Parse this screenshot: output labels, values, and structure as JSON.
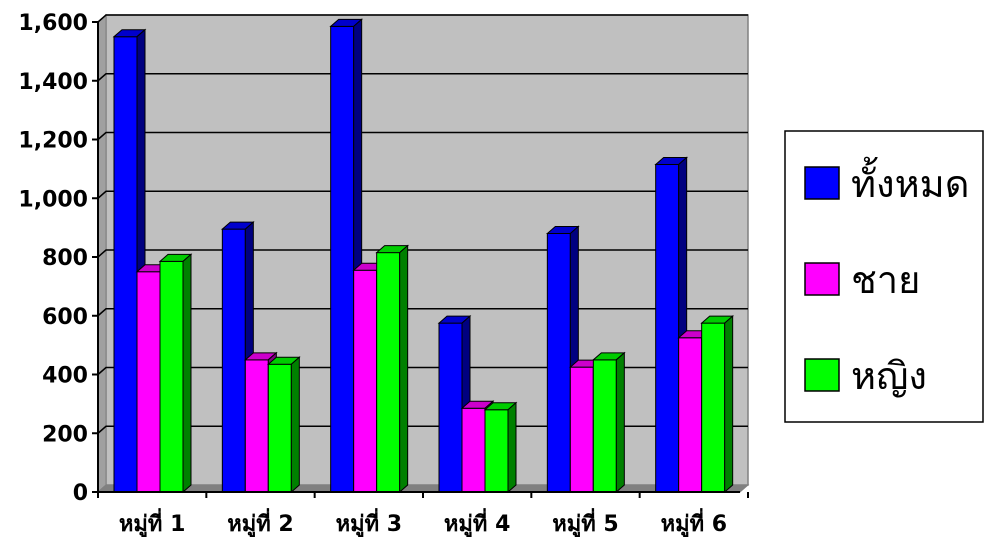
{
  "chart_data": {
    "type": "bar",
    "categories": [
      "หมู่ที่ 1",
      "หมู่ที่ 2",
      "หมู่ที่ 3",
      "หมู่ที่ 4",
      "หมู่ที่ 5",
      "หมู่ที่ 6"
    ],
    "series": [
      {
        "name": "ทั้งหมด",
        "values": [
          1550,
          895,
          1585,
          575,
          880,
          1115
        ],
        "color": "#0000ff"
      },
      {
        "name": "ชาย",
        "values": [
          750,
          450,
          755,
          285,
          425,
          525
        ],
        "color": "#ff00ff"
      },
      {
        "name": "หญิง",
        "values": [
          785,
          435,
          815,
          280,
          450,
          575
        ],
        "color": "#00ff00"
      }
    ],
    "ylim": [
      0,
      1600
    ],
    "yticks": [
      0,
      200,
      400,
      600,
      800,
      1000,
      1200,
      1400,
      1600
    ],
    "ytick_labels": [
      "0",
      "200",
      "400",
      "600",
      "800",
      "1,000",
      "1,200",
      "1,400",
      "1,600"
    ],
    "grid": true,
    "legend_position": "right",
    "plot_background": "#c0c0c0",
    "title": "",
    "xlabel": "",
    "ylabel": ""
  }
}
